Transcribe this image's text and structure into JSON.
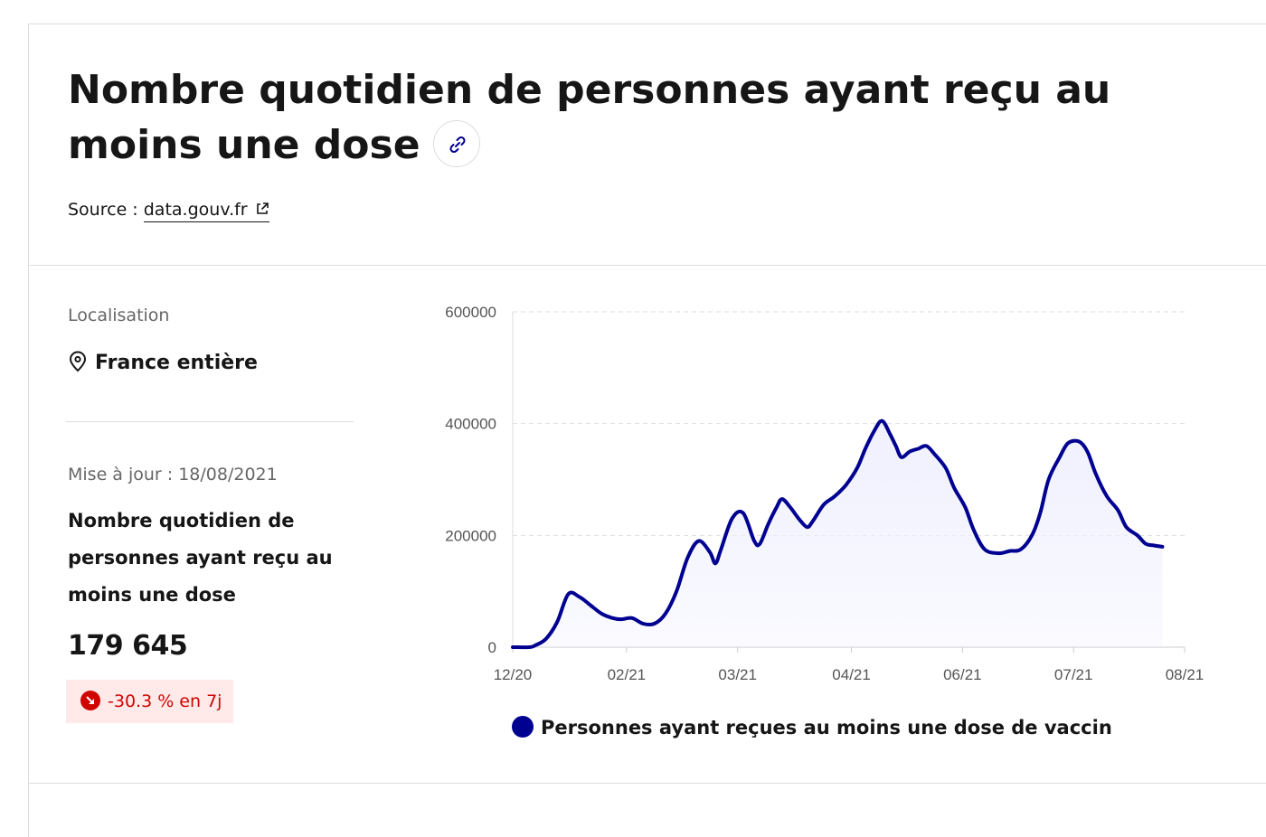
{
  "header": {
    "title": "Nombre quotidien de personnes ayant reçu au moins une dose",
    "source_prefix": "Source :",
    "source_link": "data.gouv.fr"
  },
  "panel": {
    "localisation_label": "Localisation",
    "localisation_value": "France entière",
    "update_label": "Mise à jour : 18/08/2021",
    "indicator_name": "Nombre quotidien de personnes ayant reçu au moins une dose",
    "value": "179 645",
    "trend": "-30.3 % en 7j"
  },
  "colors": {
    "accent": "#000091",
    "area_fill": "#f0f0ff",
    "trend_text": "#ce0500",
    "trend_bg": "#ffe9e9"
  },
  "icons": [
    "link-icon",
    "external-link-icon",
    "location-pin-icon",
    "trend-down-icon"
  ],
  "chart_data": {
    "type": "area",
    "x_tick_labels": [
      "12/20",
      "02/21",
      "03/21",
      "04/21",
      "06/21",
      "07/21",
      "08/21"
    ],
    "y_ticks": [
      0,
      200000,
      400000,
      600000
    ],
    "ylim": [
      0,
      600000
    ],
    "grid": true,
    "legend_position": "bottom",
    "series": [
      {
        "name": "Personnes ayant reçues au moins une dose de vaccin",
        "color": "#000091",
        "x": [
          "2020-12-27",
          "2021-01-02",
          "2021-01-04",
          "2021-01-08",
          "2021-01-12",
          "2021-01-16",
          "2021-01-20",
          "2021-01-24",
          "2021-01-28",
          "2021-02-01",
          "2021-02-04",
          "2021-02-08",
          "2021-02-12",
          "2021-02-16",
          "2021-02-20",
          "2021-02-24",
          "2021-02-28",
          "2021-03-04",
          "2021-03-08",
          "2021-03-10",
          "2021-03-12",
          "2021-03-16",
          "2021-03-20",
          "2021-03-24",
          "2021-03-26",
          "2021-03-29",
          "2021-04-01",
          "2021-04-03",
          "2021-04-06",
          "2021-04-09",
          "2021-04-12",
          "2021-04-14",
          "2021-04-18",
          "2021-04-22",
          "2021-04-26",
          "2021-04-30",
          "2021-05-03",
          "2021-05-06",
          "2021-05-09",
          "2021-05-12",
          "2021-05-14",
          "2021-05-16",
          "2021-05-19",
          "2021-05-22",
          "2021-05-25",
          "2021-05-28",
          "2021-06-01",
          "2021-06-04",
          "2021-06-08",
          "2021-06-11",
          "2021-06-15",
          "2021-06-20",
          "2021-06-24",
          "2021-06-28",
          "2021-07-02",
          "2021-07-05",
          "2021-07-08",
          "2021-07-12",
          "2021-07-15",
          "2021-07-19",
          "2021-07-22",
          "2021-07-25",
          "2021-07-29",
          "2021-08-02",
          "2021-08-05",
          "2021-08-09",
          "2021-08-12",
          "2021-08-15",
          "2021-08-18"
        ],
        "values": [
          0,
          0,
          3000,
          15000,
          45000,
          95000,
          90000,
          75000,
          60000,
          52000,
          50000,
          52000,
          42000,
          42000,
          60000,
          100000,
          160000,
          190000,
          170000,
          150000,
          175000,
          230000,
          240000,
          190000,
          185000,
          220000,
          250000,
          265000,
          250000,
          230000,
          215000,
          225000,
          255000,
          270000,
          290000,
          320000,
          355000,
          385000,
          405000,
          380000,
          360000,
          340000,
          350000,
          355000,
          360000,
          345000,
          320000,
          285000,
          250000,
          210000,
          175000,
          168000,
          172000,
          175000,
          200000,
          240000,
          300000,
          340000,
          365000,
          368000,
          350000,
          310000,
          270000,
          245000,
          215000,
          200000,
          185000,
          182000,
          179645
        ]
      }
    ]
  }
}
